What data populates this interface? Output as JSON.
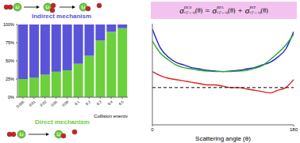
{
  "chart_data": [
    {
      "type": "bar",
      "stacked": true,
      "categories": [
        "0.005",
        "0.01",
        "0.02",
        "0.05",
        "0.08",
        "0.1",
        "0.2",
        "0.3",
        "0.4",
        "0.5"
      ],
      "series": [
        {
          "name": "Direct mechanism",
          "color": "#6ccf3c",
          "values": [
            25,
            27,
            31,
            35,
            37,
            46,
            57,
            78,
            90,
            95
          ]
        },
        {
          "name": "Indirect mechanism",
          "color": "#5a55d8",
          "values": [
            75,
            73,
            69,
            65,
            63,
            54,
            43,
            22,
            10,
            5
          ]
        }
      ],
      "x_label": "Collision energy",
      "ylim": [
        0,
        100
      ],
      "yticks": [
        {
          "value": 0,
          "label": "0%"
        },
        {
          "value": 25,
          "label": "25%"
        },
        {
          "value": 50,
          "label": "50%"
        },
        {
          "value": 75,
          "label": "75%"
        },
        {
          "value": 100,
          "label": "100%"
        }
      ],
      "grid": false
    },
    {
      "type": "line",
      "x": [
        0,
        10,
        20,
        30,
        40,
        50,
        60,
        70,
        80,
        90,
        100,
        110,
        120,
        130,
        140,
        150,
        160,
        170,
        180
      ],
      "series": [
        {
          "color": "#2020d0",
          "values": [
            2.2,
            1.5,
            1.15,
            0.95,
            0.85,
            0.75,
            0.7,
            0.65,
            0.62,
            0.6,
            0.62,
            0.65,
            0.7,
            0.75,
            0.85,
            0.95,
            1.15,
            1.45,
            2.1
          ]
        },
        {
          "color": "#22b022",
          "values": [
            1.75,
            1.3,
            1.05,
            0.85,
            0.75,
            0.7,
            0.65,
            0.62,
            0.6,
            0.6,
            0.6,
            0.62,
            0.65,
            0.72,
            0.82,
            1.05,
            1.3,
            1.6,
            2.0
          ]
        },
        {
          "color": "#e02020",
          "values": [
            0.6,
            0.45,
            0.35,
            0.3,
            0.25,
            0.2,
            0.15,
            0.1,
            0.1,
            0.05,
            0,
            0,
            -0.05,
            -0.1,
            -0.15,
            -0.2,
            -0.1,
            0,
            0.3
          ]
        },
        {
          "color": "#000000",
          "line_style": "dashed",
          "values": [
            0,
            0,
            0,
            0,
            0,
            0,
            0,
            0,
            0,
            0,
            0,
            0,
            0,
            0,
            0,
            0,
            0,
            0,
            0
          ]
        }
      ],
      "x_label": "Scattering angle (θ)",
      "xlim": [
        0,
        180
      ],
      "xticks": [
        0,
        180
      ],
      "ylim": [
        -1.4,
        2.4
      ],
      "tick_labels": "x",
      "grid": false
    }
  ],
  "formula": [
    {
      "base": "σ",
      "sup": "DCS",
      "sub": "v′j′←vj",
      "arg": "(θ)"
    },
    "=",
    {
      "base": "σ",
      "sup": "RPA",
      "sub": "v′j′←vj",
      "arg": "(θ)"
    },
    "+",
    {
      "base": "σ",
      "sup": "INT",
      "sub": "v′j′←vj",
      "arg": "(θ)"
    }
  ],
  "diagram": {
    "atom_label": "Li"
  }
}
